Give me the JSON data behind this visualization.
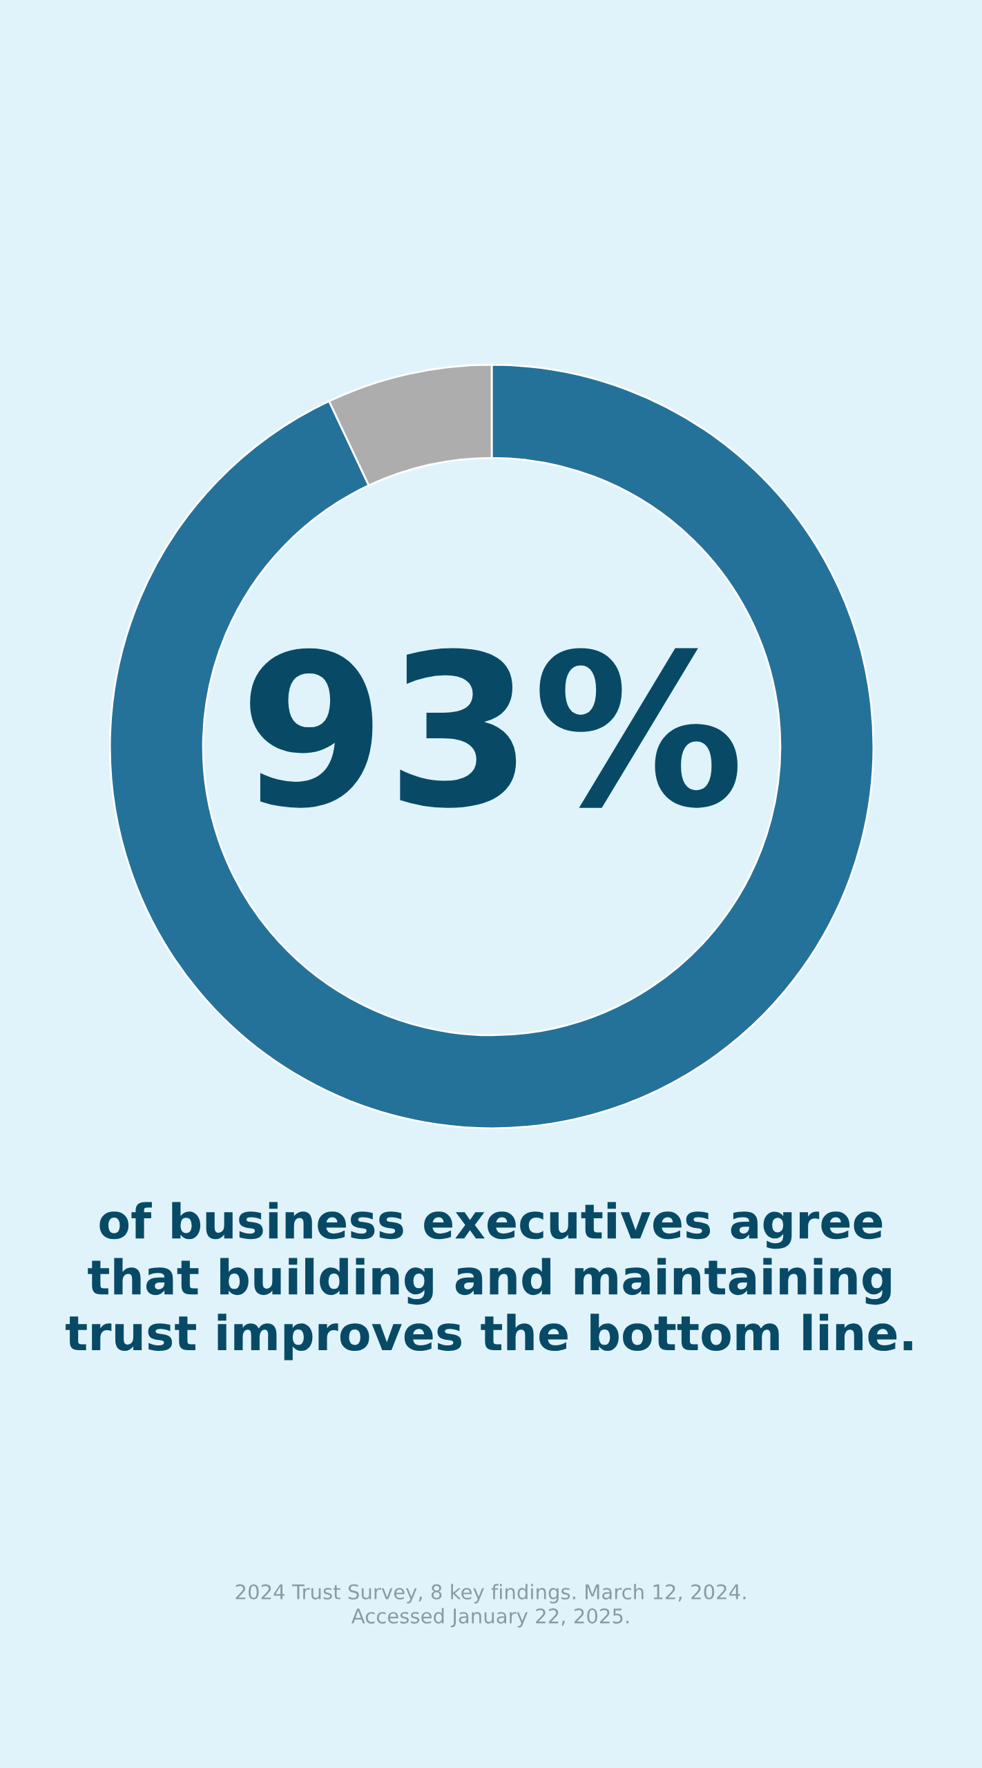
{
  "chart_data": {
    "type": "donut",
    "categories": [
      null,
      null
    ],
    "values": [
      93,
      7
    ],
    "colors": [
      "#24729a",
      "#adadad"
    ],
    "value_labels": [
      "93%",
      null
    ],
    "annotations": [
      "of business executives agree\nthat building and maintaining\ntrust improves the bottom line.",
      "2024 Trust Survey, 8 key findings. March 12, 2024.\nAccessed January 22, 2025."
    ]
  }
}
